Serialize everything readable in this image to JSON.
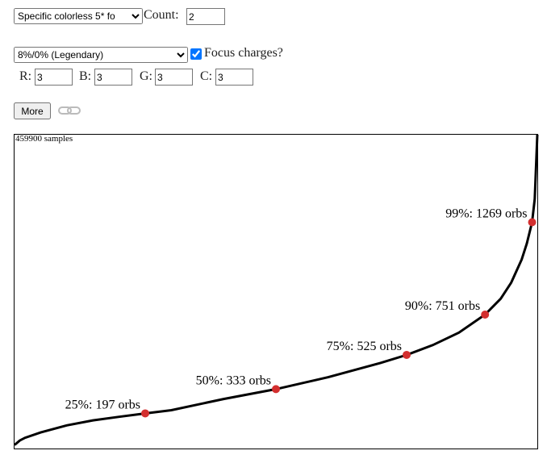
{
  "controls": {
    "target_select": "Specific colorless 5* fo",
    "count_label": "Count:",
    "count_value": "2",
    "rate_select": "8%/0% (Legendary)",
    "focus_checked": true,
    "focus_label": "Focus charges?",
    "colors": [
      {
        "label": "R:",
        "value": "3"
      },
      {
        "label": "B:",
        "value": "3"
      },
      {
        "label": "G:",
        "value": "3"
      },
      {
        "label": "C:",
        "value": "3"
      }
    ],
    "more_button": "More"
  },
  "chart_data": {
    "type": "line",
    "samples_label": "459900 samples",
    "x": [
      0,
      1,
      2,
      5,
      10,
      15,
      20,
      25,
      30,
      40,
      50,
      60,
      70,
      75,
      80,
      85,
      90,
      93,
      95,
      97,
      98,
      99,
      99.5,
      100
    ],
    "values": [
      20,
      45,
      60,
      90,
      130,
      158,
      178,
      197,
      215,
      278,
      333,
      400,
      480,
      525,
      580,
      650,
      751,
      840,
      930,
      1060,
      1150,
      1269,
      1400,
      1760
    ],
    "color": "#000000",
    "marker_color": "#d32f2f",
    "xlim": [
      0,
      100
    ],
    "ylim": [
      0,
      1760
    ],
    "markers": [
      {
        "percentile": 25,
        "orbs": 197,
        "label": "25%: 197 orbs"
      },
      {
        "percentile": 50,
        "orbs": 333,
        "label": "50%: 333 orbs"
      },
      {
        "percentile": 75,
        "orbs": 525,
        "label": "75%: 525 orbs"
      },
      {
        "percentile": 90,
        "orbs": 751,
        "label": "90%: 751 orbs"
      },
      {
        "percentile": 99,
        "orbs": 1269,
        "label": "99%: 1269 orbs"
      }
    ]
  }
}
